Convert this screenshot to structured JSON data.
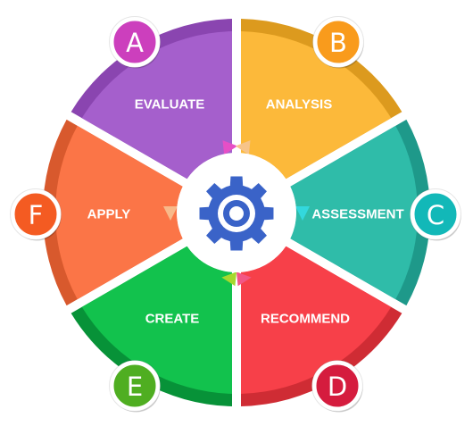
{
  "diagram": {
    "segments": [
      {
        "id": "a",
        "letter": "A",
        "label": "EVALUATE",
        "color": "#a55fcc",
        "rim": "#8a45b0",
        "badge": "#cc3fbd",
        "arrow": "#e64fc6"
      },
      {
        "id": "b",
        "letter": "B",
        "label": "ANALYSIS",
        "color": "#fcb93a",
        "rim": "#dc9a1e",
        "badge": "#f99b1c",
        "arrow": "#f7c489"
      },
      {
        "id": "c",
        "letter": "C",
        "label": "ASSESSMENT",
        "color": "#2fbca9",
        "rim": "#1e998a",
        "badge": "#12b8b8",
        "arrow": "#33d8dd"
      },
      {
        "id": "d",
        "letter": "D",
        "label": "RECOMMEND",
        "color": "#f74049",
        "rim": "#cf2c34",
        "badge": "#d51c3e",
        "arrow": "#f25785"
      },
      {
        "id": "e",
        "letter": "E",
        "label": "CREATE",
        "color": "#12c24d",
        "rim": "#079238",
        "badge": "#4fae21",
        "arrow": "#a6d82e"
      },
      {
        "id": "f",
        "letter": "F",
        "label": "APPLY",
        "color": "#fb7547",
        "rim": "#d8592d",
        "badge": "#f45b22",
        "arrow": "#f8b98a"
      }
    ],
    "center_icon": "gear-icon",
    "gear_color": "#3a63c8"
  }
}
